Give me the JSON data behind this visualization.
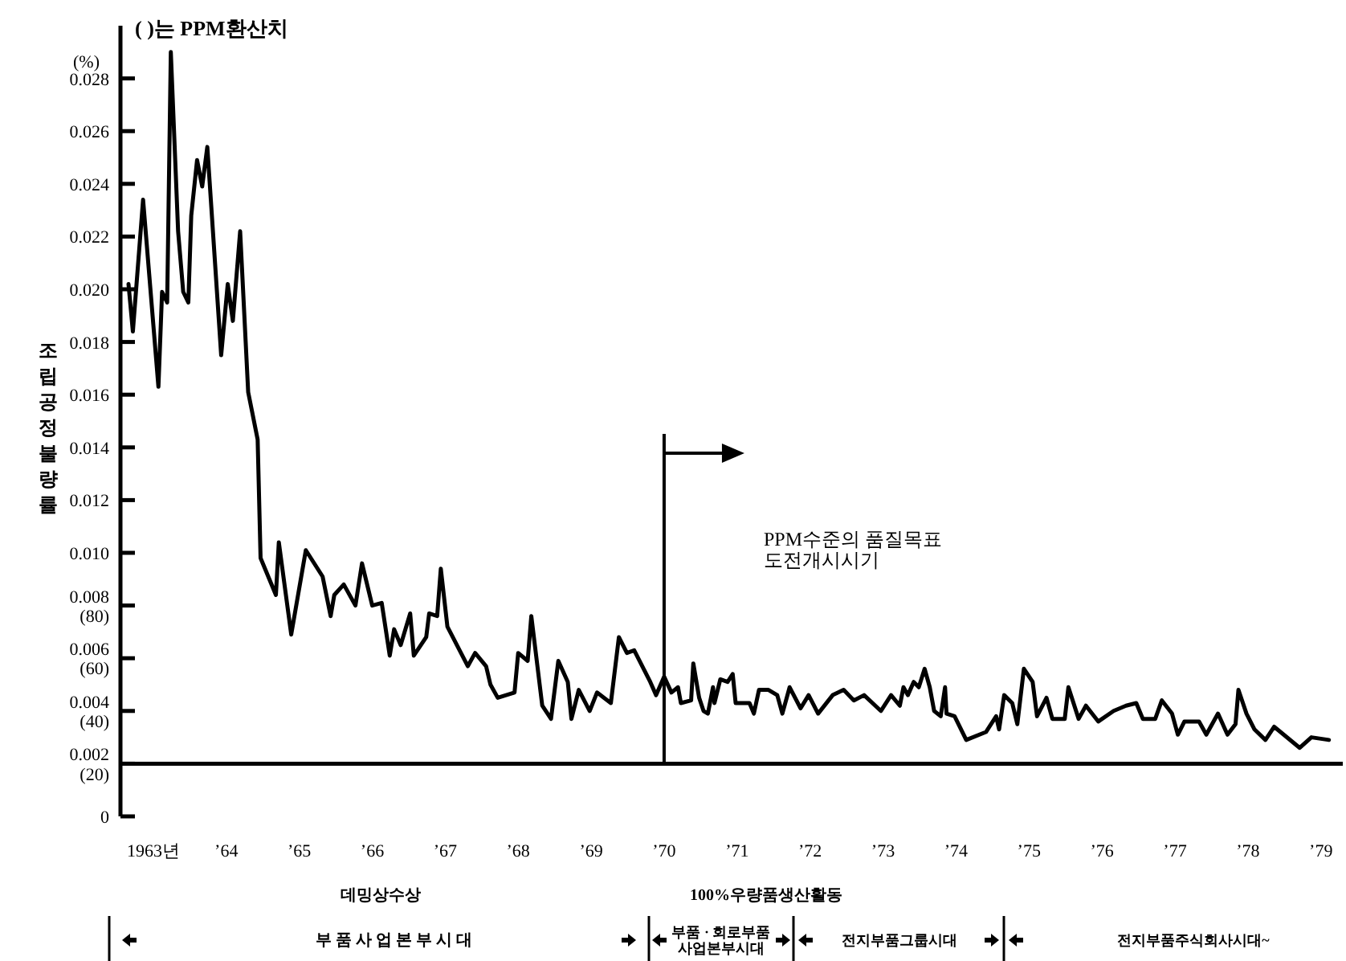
{
  "chart_data": {
    "type": "line",
    "ylabel": "조립공정불량률",
    "annotations": [
      "( )는 PPM환산치",
      "(%)",
      "데밍상수상",
      "100%우량품생산활동",
      "부 품 사 업 본 부 시 대",
      "부품 · 회로부품\n사업본부시대",
      "전지부품그룹시대",
      "전지부품주식회사시대~"
    ],
    "x": [
      1962.66,
      1962.72,
      1962.86,
      1963.07,
      1963.12,
      1963.19,
      1963.24,
      1963.34,
      1963.41,
      1963.48,
      1963.52,
      1963.6,
      1963.67,
      1963.74,
      1963.93,
      1964.02,
      1964.09,
      1964.19,
      1964.3,
      1964.43,
      1964.47,
      1964.68,
      1964.72,
      1964.89,
      1965.09,
      1965.32,
      1965.43,
      1965.48,
      1965.61,
      1965.77,
      1965.86,
      1966.0,
      1966.13,
      1966.24,
      1966.3,
      1966.39,
      1966.52,
      1966.57,
      1966.74,
      1966.78,
      1966.89,
      1966.94,
      1967.03,
      1967.31,
      1967.41,
      1967.56,
      1967.62,
      1967.72,
      1967.95,
      1968.0,
      1968.13,
      1968.18,
      1968.33,
      1968.45,
      1968.55,
      1968.68,
      1968.73,
      1968.83,
      1968.98,
      1969.08,
      1969.27,
      1969.38,
      1969.49,
      1969.59,
      1969.81,
      1969.89,
      1970.0,
      1970.1,
      1970.19,
      1970.23,
      1970.37,
      1970.4,
      1970.48,
      1970.54,
      1970.6,
      1970.67,
      1970.69,
      1970.77,
      1970.87,
      1970.94,
      1970.98,
      1971.17,
      1971.23,
      1971.3,
      1971.43,
      1971.55,
      1971.62,
      1971.72,
      1971.87,
      1971.98,
      1972.11,
      1972.31,
      1972.46,
      1972.6,
      1972.74,
      1972.97,
      1973.11,
      1973.23,
      1973.28,
      1973.34,
      1973.42,
      1973.49,
      1973.57,
      1973.64,
      1973.7,
      1973.79,
      1973.85,
      1973.87,
      1973.98,
      1974.14,
      1974.41,
      1974.55,
      1974.59,
      1974.66,
      1974.77,
      1974.84,
      1974.93,
      1975.05,
      1975.11,
      1975.24,
      1975.32,
      1975.49,
      1975.54,
      1975.68,
      1975.78,
      1975.95,
      1976.16,
      1976.33,
      1976.47,
      1976.56,
      1976.73,
      1976.82,
      1976.96,
      1977.04,
      1977.13,
      1977.33,
      1977.43,
      1977.59,
      1977.72,
      1977.83,
      1977.87,
      1977.98,
      1978.09,
      1978.24,
      1978.36,
      1978.71,
      1978.87,
      1979.11
    ],
    "series": [
      {
        "color": "#000000",
        "values": [
          0.0202,
          0.0184,
          0.0234,
          0.0163,
          0.0199,
          0.0195,
          0.029,
          0.0222,
          0.0199,
          0.0195,
          0.0228,
          0.0249,
          0.0239,
          0.0254,
          0.0175,
          0.0202,
          0.0188,
          0.0222,
          0.0161,
          0.0143,
          0.0098,
          0.0084,
          0.0104,
          0.0069,
          0.0101,
          0.0091,
          0.0076,
          0.0084,
          0.0088,
          0.008,
          0.0096,
          0.008,
          0.0081,
          0.0061,
          0.0071,
          0.0065,
          0.0077,
          0.0061,
          0.0068,
          0.0077,
          0.0076,
          0.0094,
          0.0072,
          0.0057,
          0.0062,
          0.0057,
          0.005,
          0.0045,
          0.0047,
          0.0062,
          0.0059,
          0.0076,
          0.0042,
          0.0037,
          0.0059,
          0.0051,
          0.0037,
          0.0048,
          0.004,
          0.0047,
          0.0043,
          0.0068,
          0.0062,
          0.0063,
          0.0051,
          0.0046,
          0.0053,
          0.0047,
          0.0049,
          0.0043,
          0.0044,
          0.0058,
          0.0045,
          0.004,
          0.0039,
          0.0049,
          0.0043,
          0.0052,
          0.0051,
          0.0054,
          0.0043,
          0.0043,
          0.0039,
          0.0048,
          0.0048,
          0.0046,
          0.0039,
          0.0049,
          0.0041,
          0.0046,
          0.0039,
          0.0046,
          0.0048,
          0.0044,
          0.0046,
          0.004,
          0.0046,
          0.0042,
          0.0049,
          0.0046,
          0.0051,
          0.0049,
          0.0056,
          0.0049,
          0.004,
          0.0038,
          0.0049,
          0.0039,
          0.0038,
          0.0029,
          0.0032,
          0.0038,
          0.0033,
          0.0046,
          0.0043,
          0.0035,
          0.0056,
          0.0051,
          0.0038,
          0.0045,
          0.0037,
          0.0037,
          0.0049,
          0.0037,
          0.0042,
          0.0036,
          0.004,
          0.0042,
          0.0043,
          0.0037,
          0.0037,
          0.0044,
          0.0039,
          0.0031,
          0.0036,
          0.0036,
          0.0031,
          0.0039,
          0.0031,
          0.0035,
          0.0048,
          0.0039,
          0.0033,
          0.0029,
          0.0034,
          0.0026,
          0.003,
          0.0029
        ]
      }
    ],
    "xlim": [
      1962.55,
      1979.3
    ],
    "ylim": [
      0,
      0.03
    ],
    "xticks": [
      {
        "value": 1963,
        "label": "1963년"
      },
      {
        "value": 1964,
        "label": "’64"
      },
      {
        "value": 1965,
        "label": "’65"
      },
      {
        "value": 1966,
        "label": "’66"
      },
      {
        "value": 1967,
        "label": "’67"
      },
      {
        "value": 1968,
        "label": "’68"
      },
      {
        "value": 1969,
        "label": "’69"
      },
      {
        "value": 1970,
        "label": "’70"
      },
      {
        "value": 1971,
        "label": "’71"
      },
      {
        "value": 1972,
        "label": "’72"
      },
      {
        "value": 1973,
        "label": "’73"
      },
      {
        "value": 1974,
        "label": "’74"
      },
      {
        "value": 1975,
        "label": "’75"
      },
      {
        "value": 1976,
        "label": "’76"
      },
      {
        "value": 1977,
        "label": "’77"
      },
      {
        "value": 1978,
        "label": "’78"
      },
      {
        "value": 1979,
        "label": "’79"
      }
    ],
    "yticks": [
      0,
      {
        "value": 0.002,
        "label": "0.002\n(20)"
      },
      {
        "value": 0.004,
        "label": "0.004\n(40)"
      },
      {
        "value": 0.006,
        "label": "0.006\n(60)"
      },
      {
        "value": 0.008,
        "label": "0.008\n(80)"
      },
      {
        "value": 0.01,
        "label": "0.010"
      },
      0.012,
      0.014,
      0.016,
      0.018,
      {
        "value": 0.02,
        "label": "0.020"
      },
      0.022,
      0.024,
      0.026,
      0.028
    ],
    "ref_lines": [
      {
        "axis": "y",
        "value": 0.002,
        "color": "#000000"
      },
      {
        "axis": "x",
        "value": 1970,
        "label": "PPM수준의 품질목표\n도전개시시기",
        "color": "#000000"
      }
    ]
  }
}
